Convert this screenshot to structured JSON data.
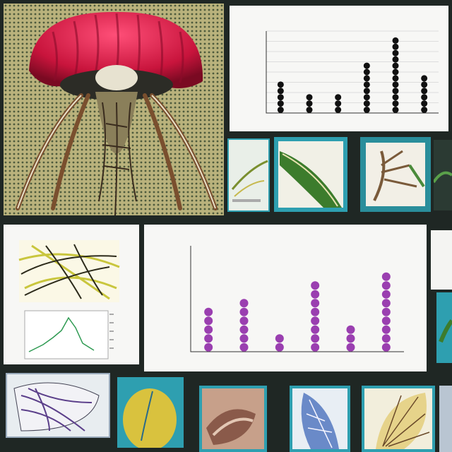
{
  "colors": {
    "background": "#1f2724",
    "dot_dark": "#111111",
    "dot_purple": "#9a3fb0",
    "jelly_red": "#d2183f",
    "panel_teal": "#2e9fb0"
  },
  "icons": [
    "jellyfish-illustration",
    "leaf-vein-thumbnail",
    "line-chart-thumbnail"
  ],
  "top_chart": {
    "title": "",
    "ylabel": "",
    "xlabel": "",
    "chart_data": {
      "type": "scatter",
      "categories": [
        "",
        "",
        "",
        "",
        "",
        ""
      ],
      "values": [
        5,
        3,
        3,
        8,
        12,
        6
      ],
      "ylim": [
        0,
        13
      ]
    }
  },
  "main_chart": {
    "title": "",
    "ylabel": "",
    "xlabel": "",
    "chart_data": {
      "type": "scatter",
      "categories": [
        "",
        "",
        "",
        "",
        "",
        ""
      ],
      "values": [
        5,
        6,
        2,
        8,
        3,
        9
      ],
      "ylim": [
        0,
        12
      ]
    }
  },
  "left_panel": {
    "leaf_caption": "",
    "line_caption": ""
  }
}
